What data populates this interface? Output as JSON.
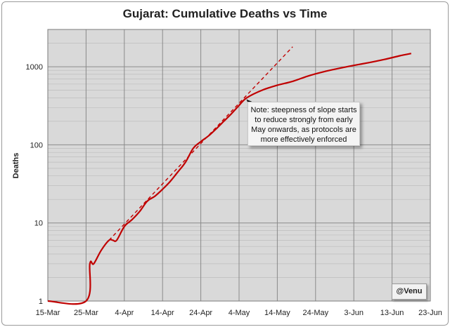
{
  "chart_data": {
    "type": "line",
    "title": "Gujarat: Cumulative Deaths vs Time",
    "ylabel": "Deaths",
    "xlabel": "",
    "y_scale": "log",
    "ylim": [
      1,
      3000
    ],
    "xlim": [
      "2020-03-15",
      "2020-06-23"
    ],
    "x_ticks": [
      "15-Mar",
      "25-Mar",
      "4-Apr",
      "14-Apr",
      "24-Apr",
      "4-May",
      "14-May",
      "24-May",
      "3-Jun",
      "13-Jun",
      "23-Jun"
    ],
    "y_ticks": [
      "1",
      "10",
      "100",
      "1000"
    ],
    "grid": true,
    "series": [
      {
        "style": "solid",
        "color": "#c00000",
        "points": [
          [
            "2020-03-15",
            1
          ],
          [
            "2020-03-25",
            1
          ],
          [
            "2020-03-26",
            3
          ],
          [
            "2020-03-27",
            3
          ],
          [
            "2020-03-29",
            4.5
          ],
          [
            "2020-03-31",
            6
          ],
          [
            "2020-04-01",
            6
          ],
          [
            "2020-04-02",
            6
          ],
          [
            "2020-04-04",
            9
          ],
          [
            "2020-04-06",
            11
          ],
          [
            "2020-04-08",
            14
          ],
          [
            "2020-04-10",
            19
          ],
          [
            "2020-04-12",
            22
          ],
          [
            "2020-04-14",
            27
          ],
          [
            "2020-04-16",
            34
          ],
          [
            "2020-04-18",
            45
          ],
          [
            "2020-04-20",
            60
          ],
          [
            "2020-04-22",
            90
          ],
          [
            "2020-04-24",
            110
          ],
          [
            "2020-04-26",
            130
          ],
          [
            "2020-04-28",
            160
          ],
          [
            "2020-04-30",
            200
          ],
          [
            "2020-05-02",
            250
          ],
          [
            "2020-05-04",
            320
          ],
          [
            "2020-05-06",
            400
          ],
          [
            "2020-05-10",
            500
          ],
          [
            "2020-05-14",
            580
          ],
          [
            "2020-05-18",
            650
          ],
          [
            "2020-05-22",
            760
          ],
          [
            "2020-05-26",
            860
          ],
          [
            "2020-05-30",
            950
          ],
          [
            "2020-06-03",
            1040
          ],
          [
            "2020-06-07",
            1130
          ],
          [
            "2020-06-11",
            1240
          ],
          [
            "2020-06-15",
            1380
          ],
          [
            "2020-06-18",
            1480
          ]
        ]
      },
      {
        "style": "dashed",
        "color": "#c00000",
        "points": [
          [
            "2020-03-31",
            6
          ],
          [
            "2020-05-18",
            1800
          ]
        ]
      }
    ],
    "annotations": [
      {
        "text_lines": [
          "Note: steepness of slope starts",
          "to reduce strongly from early",
          "May onwards, as protocols are",
          "more effectively enforced"
        ],
        "arrow_to": [
          "2020-05-06",
          380
        ]
      },
      {
        "text": "@Venu"
      }
    ]
  }
}
